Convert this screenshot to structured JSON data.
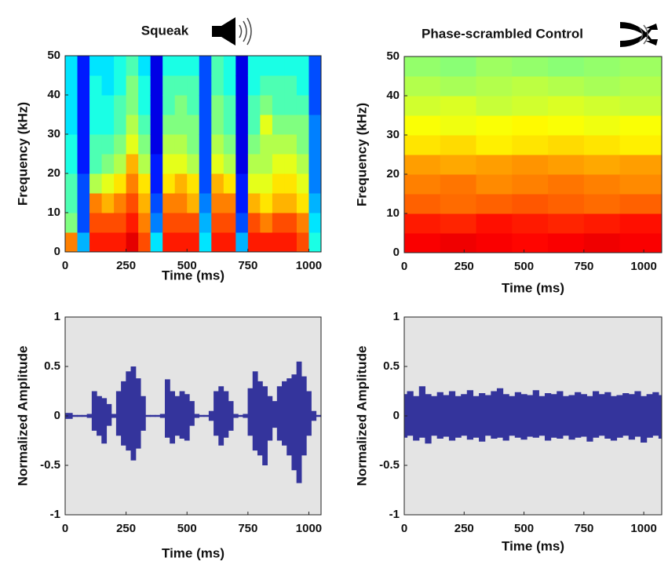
{
  "chart_data": [
    {
      "type": "heatmap",
      "title": "Squeak",
      "xlabel": "Time (ms)",
      "ylabel": "Frequency (kHz)",
      "colormap": "jet",
      "xlim": [
        0,
        1050
      ],
      "ylim": [
        0,
        50
      ],
      "xticks": [
        0,
        250,
        500,
        750,
        1000
      ],
      "yticks": [
        0,
        10,
        20,
        30,
        40,
        50
      ],
      "xbins": [
        0,
        50,
        100,
        150,
        200,
        250,
        300,
        350,
        400,
        450,
        500,
        550,
        600,
        650,
        700,
        750,
        800,
        850,
        900,
        950,
        1000,
        1050
      ],
      "ybins": [
        0,
        5,
        10,
        15,
        20,
        25,
        30,
        35,
        40,
        45,
        50
      ],
      "z": [
        [
          0.75,
          0.5,
          0.45,
          0.45,
          0.4,
          0.4,
          0.35,
          0.35,
          0.35,
          0.35
        ],
        [
          0.3,
          0.2,
          0.2,
          0.2,
          0.15,
          0.15,
          0.15,
          0.15,
          0.15,
          0.15
        ],
        [
          0.85,
          0.8,
          0.75,
          0.55,
          0.45,
          0.45,
          0.4,
          0.4,
          0.4,
          0.35
        ],
        [
          0.85,
          0.8,
          0.7,
          0.6,
          0.5,
          0.45,
          0.4,
          0.4,
          0.35,
          0.35
        ],
        [
          0.85,
          0.8,
          0.75,
          0.65,
          0.55,
          0.5,
          0.45,
          0.45,
          0.4,
          0.4
        ],
        [
          0.9,
          0.85,
          0.8,
          0.75,
          0.7,
          0.6,
          0.55,
          0.5,
          0.5,
          0.45
        ],
        [
          0.8,
          0.75,
          0.7,
          0.65,
          0.55,
          0.5,
          0.45,
          0.4,
          0.4,
          0.35
        ],
        [
          0.35,
          0.25,
          0.2,
          0.15,
          0.15,
          0.1,
          0.1,
          0.1,
          0.1,
          0.1
        ],
        [
          0.85,
          0.8,
          0.75,
          0.65,
          0.6,
          0.55,
          0.5,
          0.45,
          0.45,
          0.4
        ],
        [
          0.85,
          0.8,
          0.75,
          0.7,
          0.6,
          0.55,
          0.5,
          0.5,
          0.45,
          0.4
        ],
        [
          0.85,
          0.8,
          0.7,
          0.65,
          0.55,
          0.5,
          0.5,
          0.45,
          0.45,
          0.4
        ],
        [
          0.35,
          0.3,
          0.25,
          0.2,
          0.2,
          0.2,
          0.2,
          0.2,
          0.2,
          0.2
        ],
        [
          0.85,
          0.8,
          0.75,
          0.7,
          0.6,
          0.55,
          0.5,
          0.5,
          0.45,
          0.45
        ],
        [
          0.85,
          0.8,
          0.75,
          0.65,
          0.55,
          0.5,
          0.45,
          0.45,
          0.4,
          0.4
        ],
        [
          0.3,
          0.2,
          0.15,
          0.15,
          0.1,
          0.1,
          0.1,
          0.1,
          0.1,
          0.1
        ],
        [
          0.85,
          0.8,
          0.7,
          0.6,
          0.55,
          0.5,
          0.45,
          0.45,
          0.4,
          0.4
        ],
        [
          0.85,
          0.75,
          0.65,
          0.6,
          0.55,
          0.55,
          0.6,
          0.5,
          0.45,
          0.4
        ],
        [
          0.85,
          0.8,
          0.7,
          0.65,
          0.6,
          0.55,
          0.5,
          0.45,
          0.45,
          0.4
        ],
        [
          0.85,
          0.8,
          0.7,
          0.65,
          0.6,
          0.55,
          0.5,
          0.45,
          0.45,
          0.4
        ],
        [
          0.8,
          0.75,
          0.65,
          0.6,
          0.55,
          0.5,
          0.5,
          0.45,
          0.4,
          0.4
        ],
        [
          0.4,
          0.35,
          0.3,
          0.25,
          0.25,
          0.25,
          0.25,
          0.2,
          0.2,
          0.2
        ]
      ]
    },
    {
      "type": "heatmap",
      "title": "Phase-scrambled Control",
      "xlabel": "Time (ms)",
      "ylabel": "Frequency (kHz)",
      "colormap": "jet",
      "xlim": [
        0,
        1075
      ],
      "ylim": [
        0,
        50
      ],
      "xticks": [
        0,
        250,
        500,
        750,
        1000
      ],
      "yticks": [
        0,
        10,
        20,
        30,
        40,
        50
      ],
      "xbins": [
        0,
        150,
        300,
        450,
        600,
        750,
        900,
        1075
      ],
      "ybins": [
        0,
        5,
        10,
        15,
        20,
        25,
        30,
        35,
        40,
        45,
        50
      ],
      "z": [
        [
          0.88,
          0.85,
          0.78,
          0.75,
          0.72,
          0.65,
          0.62,
          0.58,
          0.55,
          0.52
        ],
        [
          0.89,
          0.84,
          0.77,
          0.76,
          0.71,
          0.66,
          0.61,
          0.59,
          0.54,
          0.51
        ],
        [
          0.88,
          0.86,
          0.78,
          0.74,
          0.72,
          0.64,
          0.62,
          0.57,
          0.55,
          0.53
        ],
        [
          0.87,
          0.85,
          0.79,
          0.75,
          0.73,
          0.65,
          0.63,
          0.58,
          0.56,
          0.52
        ],
        [
          0.88,
          0.84,
          0.78,
          0.76,
          0.72,
          0.66,
          0.62,
          0.59,
          0.55,
          0.51
        ],
        [
          0.89,
          0.85,
          0.77,
          0.75,
          0.71,
          0.65,
          0.61,
          0.58,
          0.54,
          0.52
        ],
        [
          0.88,
          0.86,
          0.78,
          0.74,
          0.72,
          0.64,
          0.62,
          0.57,
          0.55,
          0.53
        ]
      ]
    },
    {
      "type": "waveform",
      "xlabel": "Time (ms)",
      "ylabel": "Normalized Amplitude",
      "color": "#34349c",
      "xlim": [
        0,
        1050
      ],
      "ylim": [
        -1,
        1
      ],
      "xticks": [
        0,
        250,
        500,
        750,
        1000
      ],
      "yticks": [
        -1,
        -0.5,
        0,
        0.5,
        1
      ],
      "x": [
        0,
        20,
        40,
        60,
        80,
        100,
        120,
        140,
        160,
        180,
        200,
        220,
        240,
        260,
        280,
        300,
        320,
        340,
        360,
        380,
        400,
        420,
        440,
        460,
        480,
        500,
        520,
        540,
        560,
        580,
        600,
        620,
        640,
        660,
        680,
        700,
        720,
        740,
        760,
        780,
        800,
        820,
        840,
        860,
        880,
        900,
        920,
        940,
        960,
        980,
        1000,
        1020,
        1040
      ],
      "upper": [
        0.03,
        0.03,
        0.01,
        0.01,
        0.01,
        0.02,
        0.25,
        0.2,
        0.18,
        0.12,
        0.02,
        0.25,
        0.35,
        0.45,
        0.5,
        0.38,
        0.2,
        0.01,
        0.01,
        0.01,
        0.02,
        0.37,
        0.25,
        0.2,
        0.25,
        0.22,
        0.15,
        0.02,
        0.01,
        0.01,
        0.05,
        0.25,
        0.3,
        0.25,
        0.15,
        0.02,
        0.01,
        0.02,
        0.28,
        0.45,
        0.35,
        0.3,
        0.2,
        0.15,
        0.3,
        0.35,
        0.38,
        0.42,
        0.55,
        0.4,
        0.25,
        0.05,
        0.01
      ],
      "lower": [
        -0.03,
        -0.03,
        -0.01,
        -0.01,
        -0.01,
        -0.02,
        -0.15,
        -0.2,
        -0.28,
        -0.1,
        -0.02,
        -0.2,
        -0.3,
        -0.35,
        -0.45,
        -0.33,
        -0.15,
        -0.01,
        -0.01,
        -0.01,
        -0.02,
        -0.22,
        -0.28,
        -0.2,
        -0.23,
        -0.25,
        -0.1,
        -0.02,
        -0.01,
        -0.01,
        -0.05,
        -0.2,
        -0.3,
        -0.22,
        -0.15,
        -0.02,
        -0.01,
        -0.02,
        -0.2,
        -0.35,
        -0.4,
        -0.5,
        -0.25,
        -0.12,
        -0.25,
        -0.3,
        -0.4,
        -0.55,
        -0.68,
        -0.4,
        -0.2,
        -0.05,
        -0.01
      ]
    },
    {
      "type": "waveform",
      "xlabel": "Time (ms)",
      "ylabel": "Normalized Amplitude",
      "color": "#34349c",
      "xlim": [
        0,
        1075
      ],
      "ylim": [
        -1,
        1
      ],
      "xticks": [
        0,
        250,
        500,
        750,
        1000
      ],
      "yticks": [
        -1,
        -0.5,
        0,
        0.5,
        1
      ],
      "x": [
        0,
        25,
        50,
        75,
        100,
        125,
        150,
        175,
        200,
        225,
        250,
        275,
        300,
        325,
        350,
        375,
        400,
        425,
        450,
        475,
        500,
        525,
        550,
        575,
        600,
        625,
        650,
        675,
        700,
        725,
        750,
        775,
        800,
        825,
        850,
        875,
        900,
        925,
        950,
        975,
        1000,
        1025,
        1050,
        1075
      ],
      "upper": [
        0.22,
        0.25,
        0.2,
        0.3,
        0.22,
        0.2,
        0.24,
        0.21,
        0.25,
        0.2,
        0.22,
        0.26,
        0.2,
        0.23,
        0.21,
        0.25,
        0.28,
        0.22,
        0.2,
        0.24,
        0.22,
        0.21,
        0.26,
        0.2,
        0.23,
        0.22,
        0.25,
        0.2,
        0.21,
        0.24,
        0.22,
        0.2,
        0.25,
        0.22,
        0.24,
        0.2,
        0.21,
        0.23,
        0.22,
        0.25,
        0.2,
        0.22,
        0.24,
        0.21
      ],
      "lower": [
        -0.22,
        -0.2,
        -0.25,
        -0.22,
        -0.28,
        -0.2,
        -0.23,
        -0.21,
        -0.25,
        -0.22,
        -0.2,
        -0.24,
        -0.22,
        -0.26,
        -0.2,
        -0.23,
        -0.22,
        -0.25,
        -0.2,
        -0.22,
        -0.24,
        -0.21,
        -0.22,
        -0.2,
        -0.25,
        -0.22,
        -0.23,
        -0.2,
        -0.24,
        -0.22,
        -0.21,
        -0.26,
        -0.22,
        -0.2,
        -0.23,
        -0.25,
        -0.22,
        -0.2,
        -0.24,
        -0.21,
        -0.27,
        -0.22,
        -0.2,
        -0.23
      ]
    }
  ]
}
